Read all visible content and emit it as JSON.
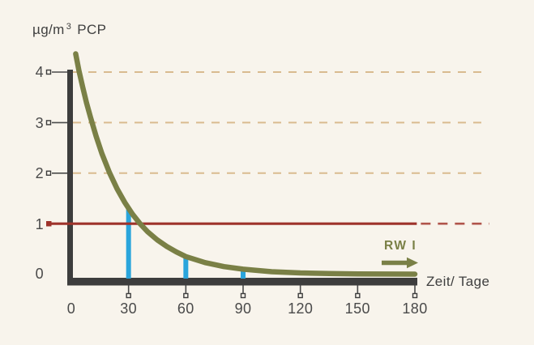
{
  "title": {
    "unit": "µg/m",
    "sup": "3",
    "substance": "PCP"
  },
  "axes": {
    "y_labels": [
      "4",
      "3",
      "2",
      "1",
      "0"
    ],
    "x_labels": [
      "0",
      "30",
      "60",
      "90",
      "120",
      "150",
      "180"
    ],
    "x_axis_label": "Zeit/ Tage"
  },
  "annotations": {
    "rw_label": "RW I"
  },
  "colors": {
    "background": "#f8f4ec",
    "axis": "#3d3d3d",
    "text": "#424242",
    "curve": "#7a8046",
    "bars": "#2aa5dc",
    "reference_line": "#9e332b",
    "reference_line_dashed": "#b0544b",
    "gridline": "#d9bb8f",
    "tick": "#4a4a4a"
  },
  "chart_data": {
    "type": "line",
    "title": "µg/m³ PCP",
    "xlabel": "Zeit/ Tage",
    "ylabel": "µg/m³ PCP",
    "xlim": [
      0,
      183
    ],
    "ylim": [
      0,
      4.5
    ],
    "x_ticks": [
      0,
      30,
      60,
      90,
      120,
      150,
      180
    ],
    "y_ticks": [
      0,
      1,
      2,
      3,
      4
    ],
    "x_tick_markers": [
      30,
      60,
      90,
      120,
      150,
      180
    ],
    "y_tick_markers": [
      2,
      3,
      4
    ],
    "grid_y_dashed": [
      2,
      3,
      4
    ],
    "grid_extends_to_x": 218,
    "series": [
      {
        "name": "PCP decay curve",
        "type": "line",
        "color": "#7a8046",
        "x": [
          2.3,
          4,
          6,
          8,
          10,
          13,
          16,
          20,
          24,
          28,
          32,
          36,
          40,
          45,
          50,
          55,
          60,
          70,
          80,
          90,
          105,
          120,
          135,
          150,
          165,
          180
        ],
        "y": [
          4.36,
          4.03,
          3.7,
          3.39,
          3.11,
          2.73,
          2.39,
          2.01,
          1.69,
          1.42,
          1.19,
          1.0,
          0.84,
          0.68,
          0.55,
          0.44,
          0.35,
          0.23,
          0.15,
          0.1,
          0.05,
          0.026,
          0.014,
          0.007,
          0.004,
          0.002
        ]
      },
      {
        "name": "measurement bars",
        "type": "bar",
        "color": "#2aa5dc",
        "x": [
          30,
          60,
          90
        ],
        "values": [
          1.3,
          0.35,
          0.1
        ]
      },
      {
        "name": "RW I reference line",
        "type": "hline",
        "label": "RW I",
        "color": "#9e332b",
        "dash_color": "#b0544b",
        "value": 1,
        "solid_to_x": 181,
        "dashed_to_x": 219
      }
    ],
    "legend": "none",
    "grid": "dashed horizontal at y=2,3,4"
  }
}
